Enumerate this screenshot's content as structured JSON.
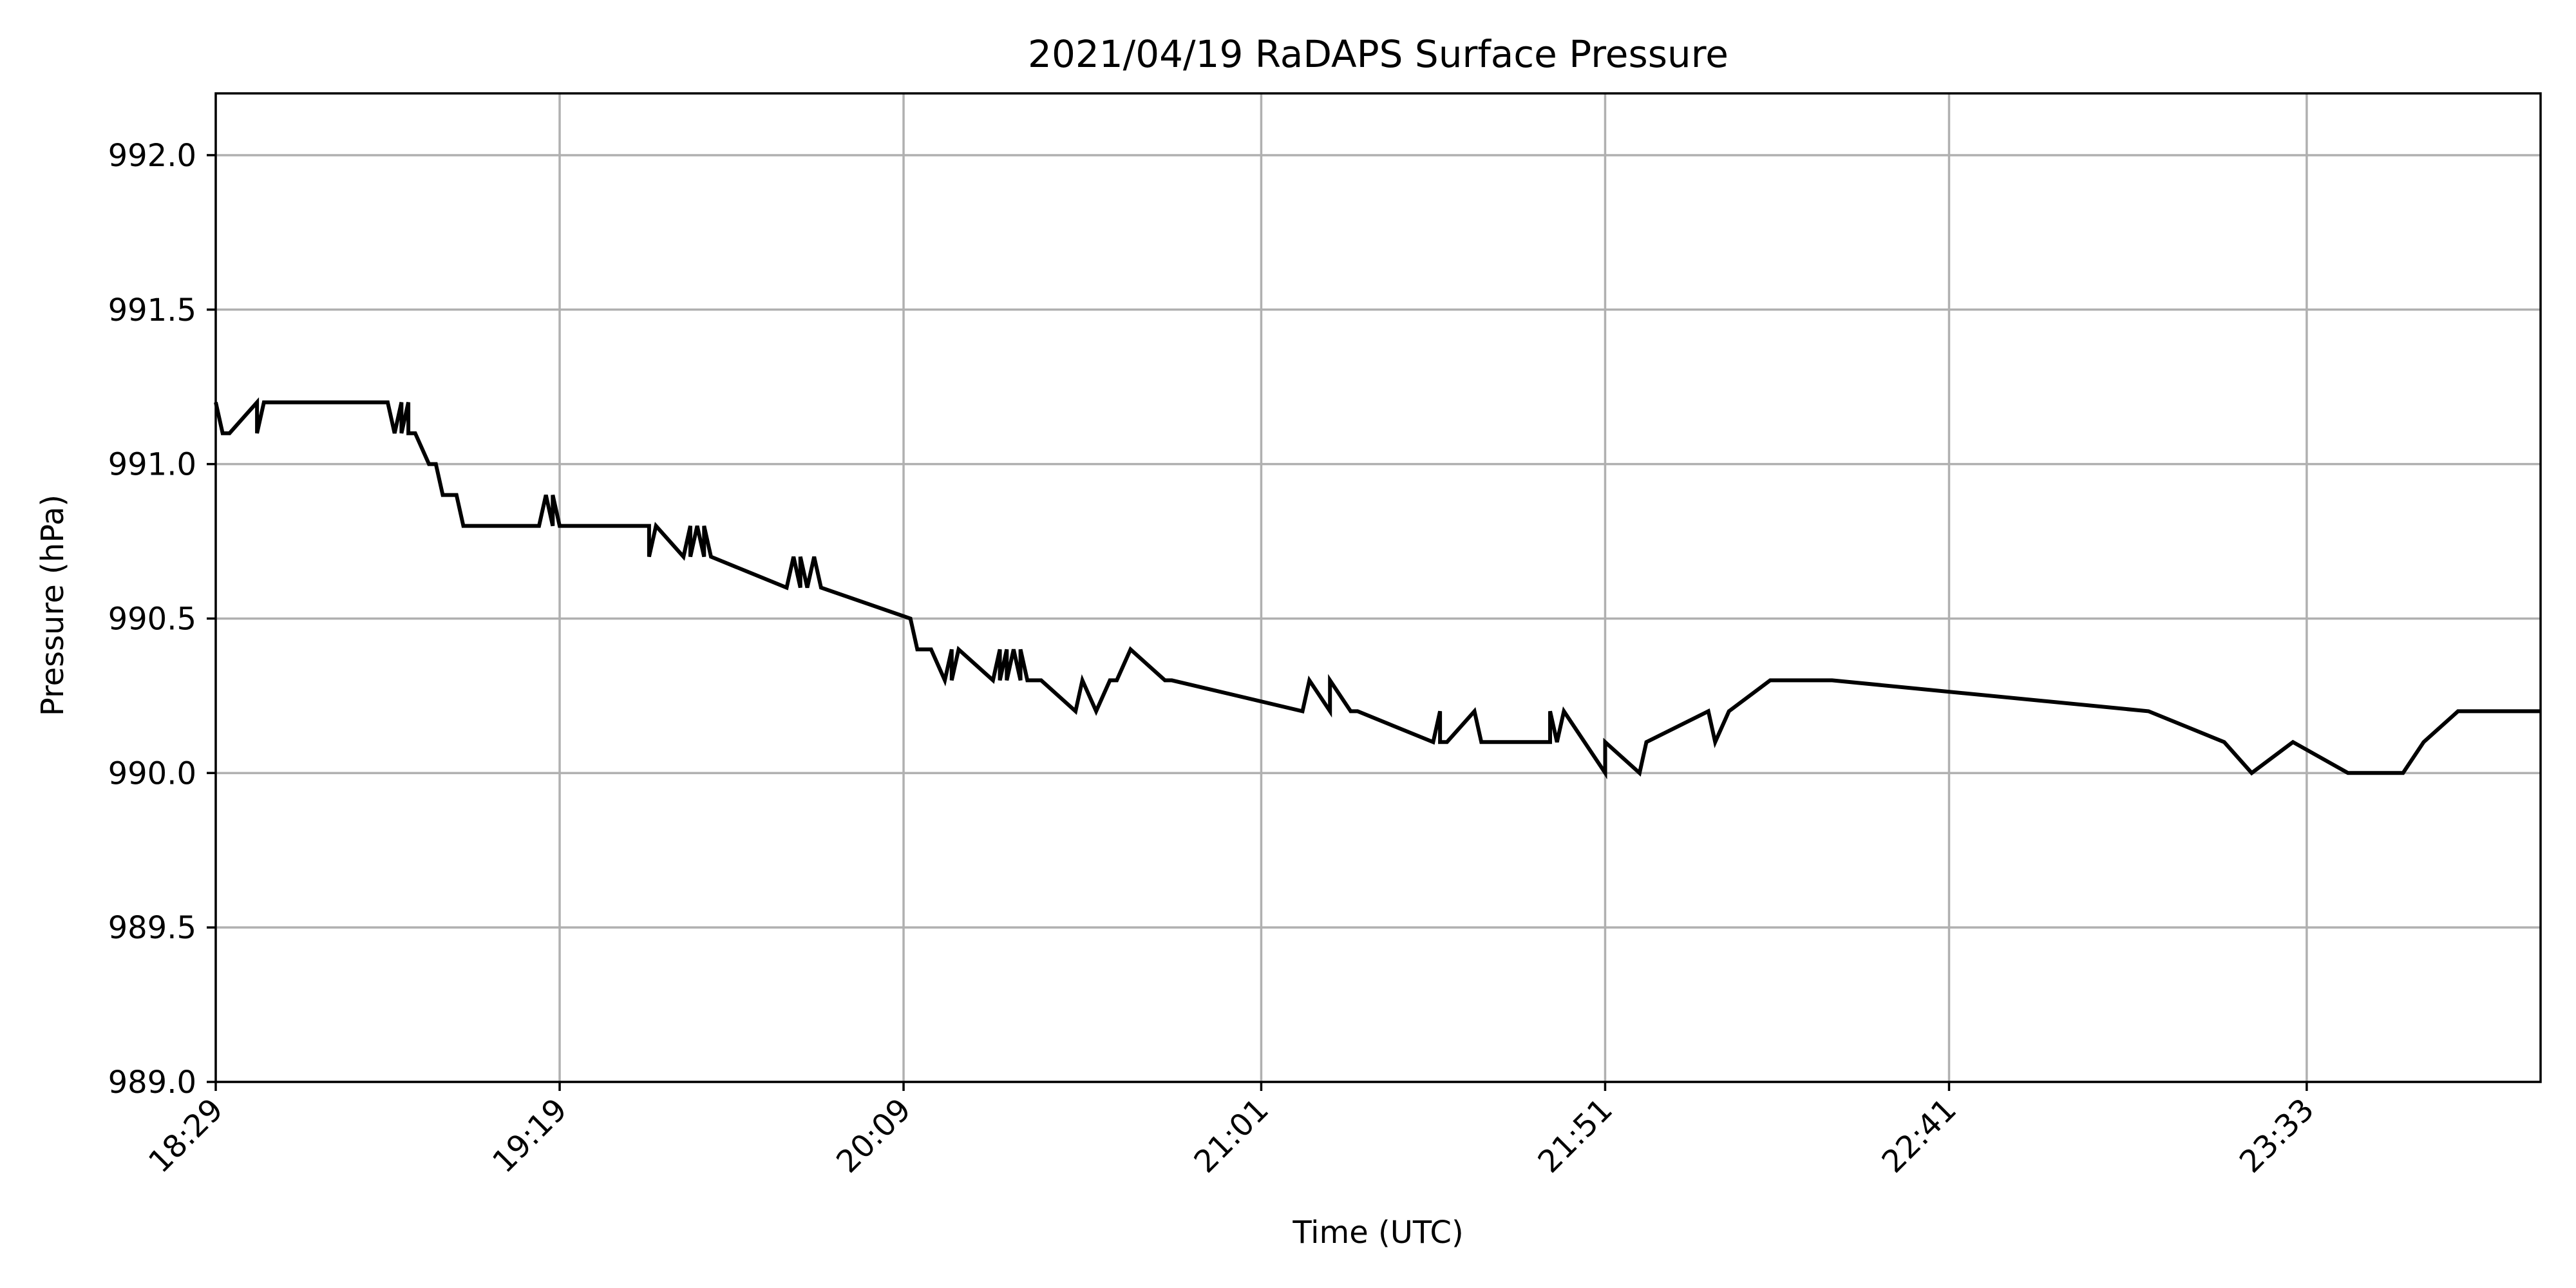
{
  "chart_data": {
    "type": "line",
    "title": "2021/04/19 RaDAPS Surface Pressure",
    "xlabel": "Time (UTC)",
    "ylabel": "Pressure (hPa)",
    "ylim": [
      989.0,
      992.2
    ],
    "yticks": [
      "989.0",
      "989.5",
      "990.0",
      "990.5",
      "991.0",
      "991.5",
      "992.0"
    ],
    "xlim": [
      "18:29",
      "24:07"
    ],
    "xticks": [
      "18:29",
      "19:19",
      "20:09",
      "21:01",
      "21:51",
      "22:41",
      "23:33"
    ],
    "grid": true,
    "series": [
      {
        "color": "#000000",
        "x": [
          "18:29",
          "18:30",
          "18:31",
          "18:35",
          "18:35",
          "18:36",
          "18:54",
          "18:55",
          "18:56",
          "18:56",
          "18:57",
          "18:57",
          "18:58",
          "19:00",
          "19:01",
          "19:02",
          "19:04",
          "19:05",
          "19:16",
          "19:17",
          "19:18",
          "19:18",
          "19:19",
          "19:19",
          "19:32",
          "19:32",
          "19:33",
          "19:37",
          "19:38",
          "19:38",
          "19:39",
          "19:40",
          "19:40",
          "19:41",
          "19:41",
          "19:52",
          "19:53",
          "19:54",
          "19:54",
          "19:55",
          "19:56",
          "19:57",
          "19:57",
          "20:10",
          "20:11",
          "20:13",
          "20:15",
          "20:16",
          "20:16",
          "20:17",
          "20:17",
          "20:22",
          "20:23",
          "20:23",
          "20:24",
          "20:24",
          "20:25",
          "20:26",
          "20:26",
          "20:27",
          "20:29",
          "20:34",
          "20:35",
          "20:37",
          "20:39",
          "20:40",
          "20:42",
          "20:47",
          "20:48",
          "21:07",
          "21:08",
          "21:11",
          "21:11",
          "21:14",
          "21:15",
          "21:26",
          "21:27",
          "21:27",
          "21:28",
          "21:32",
          "21:33",
          "21:43",
          "21:43",
          "21:44",
          "21:45",
          "21:51",
          "21:51",
          "21:56",
          "21:57",
          "21:57",
          "22:06",
          "22:07",
          "22:09",
          "22:15",
          "22:24",
          "23:10",
          "23:21",
          "23:25",
          "23:31",
          "23:39",
          "23:47",
          "23:50",
          "23:55",
          "24:07"
        ],
        "y": [
          991.2,
          991.1,
          991.1,
          991.2,
          991.1,
          991.2,
          991.2,
          991.1,
          991.2,
          991.1,
          991.2,
          991.1,
          991.1,
          991.0,
          991.0,
          990.9,
          990.9,
          990.8,
          990.8,
          990.9,
          990.8,
          990.9,
          990.8,
          990.8,
          990.8,
          990.7,
          990.8,
          990.7,
          990.8,
          990.7,
          990.8,
          990.7,
          990.8,
          990.7,
          990.7,
          990.6,
          990.7,
          990.6,
          990.7,
          990.6,
          990.7,
          990.6,
          990.6,
          990.5,
          990.4,
          990.4,
          990.3,
          990.4,
          990.3,
          990.4,
          990.4,
          990.3,
          990.4,
          990.3,
          990.4,
          990.3,
          990.4,
          990.3,
          990.4,
          990.3,
          990.3,
          990.2,
          990.3,
          990.2,
          990.3,
          990.3,
          990.4,
          990.3,
          990.3,
          990.2,
          990.3,
          990.2,
          990.3,
          990.2,
          990.2,
          990.1,
          990.2,
          990.1,
          990.1,
          990.2,
          990.1,
          990.1,
          990.2,
          990.1,
          990.2,
          990.0,
          990.1,
          990.0,
          990.1,
          990.1,
          990.2,
          990.1,
          990.2,
          990.3,
          990.3,
          990.2,
          990.1,
          990.0,
          990.1,
          990.0,
          990.0,
          990.1,
          990.2,
          990.2
        ]
      }
    ]
  }
}
